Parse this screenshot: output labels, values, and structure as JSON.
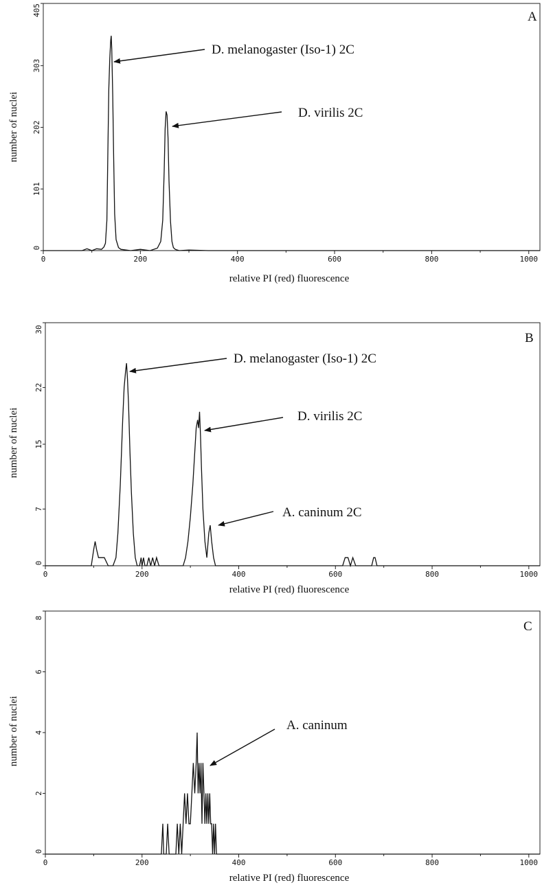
{
  "chart_data": [
    {
      "panel_label": "A",
      "type": "line",
      "xlabel": "relative PI (red) fluorescence",
      "ylabel": "number of nuclei",
      "xlim": [
        0,
        1023
      ],
      "ylim": [
        0,
        405
      ],
      "xticks": [
        0,
        200,
        400,
        600,
        800,
        1000
      ],
      "xtick_labels": [
        "0",
        "200",
        "400",
        "600",
        "800",
        "1000"
      ],
      "yticks": [
        0,
        101,
        202,
        303,
        405
      ],
      "ytick_labels": [
        "0",
        "101",
        "202",
        "303",
        "405"
      ],
      "series": [
        {
          "x": [
            0,
            80,
            90,
            100,
            110,
            120,
            125,
            128,
            131,
            133,
            135,
            137,
            139,
            140,
            141,
            143,
            145,
            147,
            150,
            155,
            160,
            180,
            200,
            220,
            235,
            242,
            246,
            249,
            251,
            253,
            255,
            257,
            259,
            262,
            265,
            268,
            272,
            280,
            300,
            340,
            1023
          ],
          "y": [
            0,
            0,
            3,
            0,
            3,
            2,
            6,
            12,
            50,
            160,
            265,
            315,
            345,
            352,
            330,
            255,
            150,
            60,
            18,
            5,
            2,
            0,
            2,
            0,
            4,
            15,
            50,
            130,
            200,
            228,
            222,
            185,
            115,
            48,
            15,
            5,
            2,
            0,
            1,
            0,
            0
          ]
        }
      ],
      "annotations": [
        {
          "text": "D. melanogaster (Iso-1) 2C",
          "target": [
            141,
            352
          ]
        },
        {
          "text": "D. virilis 2C",
          "target": [
            253,
            228
          ]
        }
      ]
    },
    {
      "panel_label": "B",
      "type": "line",
      "xlabel": "relative PI (red) fluorescence",
      "ylabel": "number of nuclei",
      "xlim": [
        0,
        1023
      ],
      "ylim": [
        0,
        30
      ],
      "xticks": [
        0,
        200,
        400,
        600,
        800,
        1000
      ],
      "xtick_labels": [
        "0",
        "200",
        "400",
        "600",
        "800",
        "1000"
      ],
      "yticks": [
        0,
        7,
        15,
        22,
        30
      ],
      "ytick_labels": [
        "0",
        "7",
        "15",
        "22",
        "30"
      ],
      "series": [
        {
          "x": [
            0,
            95,
            100,
            103,
            106,
            110,
            115,
            122,
            130,
            140,
            146,
            150,
            155,
            160,
            163,
            166,
            168,
            170,
            172,
            175,
            178,
            182,
            186,
            190,
            195,
            198,
            200,
            203,
            206,
            210,
            214,
            218,
            222,
            226,
            230,
            235,
            238,
            250,
            285,
            290,
            295,
            300,
            305,
            309,
            312,
            315,
            317,
            319,
            321,
            323,
            326,
            330,
            334,
            338,
            341,
            344,
            348,
            352,
            358,
            365,
            380,
            615,
            620,
            626,
            631,
            636,
            642,
            648,
            675,
            679,
            682,
            686,
            1023
          ],
          "y": [
            0,
            0,
            2,
            3,
            2,
            1,
            1,
            1,
            0,
            0,
            1,
            4,
            10,
            18,
            22,
            24,
            25,
            23,
            20,
            14,
            9,
            4,
            1,
            0,
            0,
            1,
            0,
            1,
            0,
            0,
            1,
            0,
            1,
            0,
            1,
            0,
            0,
            0,
            0,
            1,
            3,
            6,
            10,
            14,
            17,
            18,
            17,
            19,
            16,
            12,
            7,
            3,
            1,
            4,
            5,
            3,
            1,
            0,
            0,
            0,
            0,
            0,
            1,
            1,
            0,
            1,
            0,
            0,
            0,
            1,
            1,
            0,
            0
          ]
        }
      ],
      "annotations": [
        {
          "text": "D. melanogaster (Iso-1) 2C",
          "target": [
            170,
            25
          ]
        },
        {
          "text": "D. virilis 2C",
          "target": [
            319,
            17
          ]
        },
        {
          "text": "A. caninum 2C",
          "target": [
            344,
            5
          ]
        }
      ]
    },
    {
      "panel_label": "C",
      "type": "line",
      "xlabel": "relative PI (red) fluorescence",
      "ylabel": "number of nuclei",
      "xlim": [
        0,
        1023
      ],
      "ylim": [
        0,
        8
      ],
      "xticks": [
        0,
        200,
        400,
        600,
        800,
        1000
      ],
      "xtick_labels": [
        "0",
        "200",
        "400",
        "600",
        "800",
        "1000"
      ],
      "yticks": [
        0,
        2,
        4,
        6,
        8
      ],
      "ytick_labels": [
        "0",
        "2",
        "4",
        "6",
        "8"
      ],
      "series": [
        {
          "x": [
            0,
            240,
            243,
            245,
            248,
            250,
            253,
            256,
            259,
            262,
            266,
            270,
            273,
            276,
            279,
            282,
            285,
            288,
            291,
            294,
            297,
            300,
            303,
            306,
            309,
            312,
            314,
            316,
            318,
            320,
            322,
            324,
            326,
            328,
            330,
            332,
            334,
            336,
            338,
            340,
            342,
            344,
            346,
            348,
            350,
            352,
            354,
            356,
            360,
            1023
          ],
          "y": [
            0,
            0,
            1,
            0,
            0,
            0,
            1,
            0,
            0,
            0,
            0,
            0,
            1,
            0,
            1,
            0,
            1,
            2,
            1,
            2,
            1,
            1,
            2,
            3,
            2,
            3,
            4,
            2,
            3,
            2,
            3,
            1,
            3,
            2,
            1,
            2,
            1,
            2,
            1,
            2,
            1,
            1,
            0,
            1,
            0,
            1,
            0,
            0,
            0,
            0
          ]
        }
      ],
      "annotations": [
        {
          "text": "A. caninum",
          "target": [
            330,
            2.7
          ]
        }
      ]
    }
  ]
}
